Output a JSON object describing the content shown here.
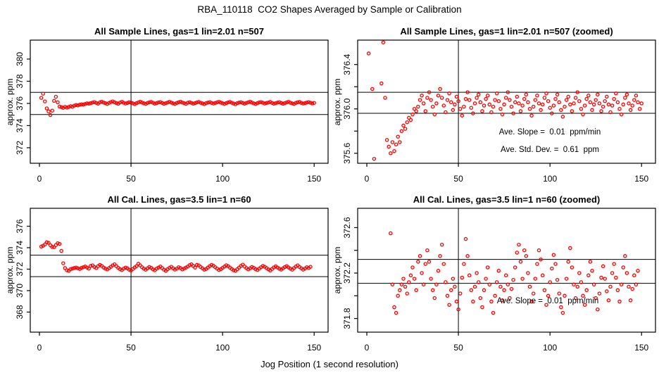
{
  "figure": {
    "main_title": "RBA_110118  CO2 Shapes Averaged by Sample or Calibration",
    "x_axis_label": "Jog Position (1 second resolution)",
    "y_axis_label": "approx. ppm",
    "point_color": "#ff0000",
    "axis_color": "#000000",
    "background_color": "#ffffff"
  },
  "series": {
    "sample": {
      "x_start": 1,
      "x_step": 1,
      "y": [
        376.5,
        376.88,
        376.18,
        375.55,
        375.28,
        374.95,
        375.35,
        376.23,
        376.6,
        376.1,
        375.72,
        375.66,
        375.6,
        375.7,
        375.62,
        375.68,
        375.75,
        375.7,
        375.8,
        375.85,
        375.82,
        375.88,
        375.92,
        375.9,
        375.95,
        376.0,
        375.98,
        376.02,
        376.08,
        376.12,
        376.05,
        375.98,
        376.1,
        376.15,
        376.08,
        376.02,
        375.95,
        376.05,
        376.12,
        376.18,
        376.1,
        376.03,
        375.97,
        376.08,
        376.14,
        376.06,
        375.99,
        376.04,
        376.11,
        376.07,
        376.0,
        375.94,
        376.02,
        376.09,
        376.15,
        376.08,
        376.01,
        375.96,
        376.05,
        376.1,
        376.13,
        376.06,
        375.98,
        376.03,
        376.09,
        376.12,
        376.04,
        375.97,
        376.02,
        376.08,
        376.14,
        376.07,
        376.0,
        375.95,
        376.04,
        376.1,
        376.15,
        376.08,
        376.02,
        375.96,
        376.06,
        376.11,
        376.05,
        375.98,
        376.03,
        376.09,
        376.13,
        376.06,
        376.0,
        375.94,
        376.02,
        376.08,
        376.12,
        376.05,
        375.99,
        376.04,
        376.1,
        376.14,
        376.07,
        376.01,
        375.96,
        376.03,
        376.09,
        376.13,
        376.06,
        375.99,
        375.93,
        376.02,
        376.08,
        376.11,
        376.04,
        375.98,
        376.05,
        376.1,
        376.15,
        376.07,
        376.0,
        375.95,
        376.03,
        376.09,
        376.12,
        376.06,
        375.99,
        376.04,
        376.08,
        376.13,
        376.05,
        375.98,
        376.02,
        376.07,
        376.11,
        376.04,
        375.97,
        376.03,
        376.09,
        376.14,
        376.06,
        376.0,
        375.95,
        376.04,
        376.1,
        376.13,
        376.05,
        375.99,
        376.03,
        376.08,
        376.12,
        376.06,
        376.0,
        376.05
      ]
    },
    "cal": {
      "x_start": 1,
      "x_step": 1,
      "y": [
        374.1,
        374.18,
        374.3,
        374.5,
        374.45,
        374.22,
        374.08,
        374.05,
        374.25,
        374.42,
        374.35,
        373.7,
        372.55,
        372.1,
        371.9,
        371.85,
        372.0,
        372.05,
        372.1,
        372.15,
        372.08,
        372.02,
        372.12,
        372.18,
        372.25,
        372.15,
        372.05,
        372.3,
        372.35,
        372.2,
        372.1,
        372.28,
        372.4,
        372.3,
        372.15,
        372.05,
        371.98,
        372.1,
        372.22,
        372.35,
        372.45,
        372.28,
        372.12,
        372.0,
        371.92,
        372.05,
        372.15,
        372.08,
        371.95,
        371.88,
        372.02,
        372.16,
        372.28,
        372.5,
        372.35,
        372.18,
        372.05,
        371.95,
        372.08,
        372.2,
        372.12,
        371.98,
        371.9,
        372.05,
        372.15,
        372.25,
        372.1,
        371.95,
        371.85,
        372.0,
        372.12,
        372.22,
        372.08,
        371.96,
        372.05,
        372.18,
        372.1,
        371.98,
        372.06,
        372.14,
        372.25,
        372.38,
        372.45,
        372.3,
        372.15,
        372.4,
        372.35,
        372.2,
        372.08,
        371.95,
        372.02,
        372.15,
        372.28,
        372.4,
        372.32,
        372.18,
        372.05,
        371.92,
        372.0,
        372.12,
        372.24,
        372.36,
        372.28,
        372.14,
        372.02,
        371.9,
        371.85,
        372.0,
        372.15,
        372.3,
        372.42,
        372.25,
        372.1,
        371.98,
        372.08,
        372.2,
        372.12,
        372.0,
        371.92,
        372.05,
        372.18,
        372.3,
        372.22,
        372.1,
        371.98,
        371.88,
        372.02,
        372.16,
        372.26,
        372.15,
        372.04,
        371.96,
        372.08,
        372.2,
        372.28,
        372.16,
        372.05,
        371.95,
        372.1,
        372.25,
        372.35,
        372.2,
        372.08,
        371.96,
        372.06,
        372.18,
        372.1,
        372.22
      ]
    }
  },
  "chart_data": [
    {
      "type": "scatter",
      "title": "All Sample Lines, gas=1 lin=2.01 n=507",
      "series_ref": "sample",
      "xlim": [
        -5.0,
        157.6
      ],
      "ylim": [
        370.6,
        381.71
      ],
      "xticks": [
        {
          "v": 0,
          "label": "0"
        },
        {
          "v": 50,
          "label": "50"
        },
        {
          "v": 100,
          "label": "100"
        },
        {
          "v": 150,
          "label": "150"
        }
      ],
      "yticks": [
        {
          "v": 372,
          "label": "372"
        },
        {
          "v": 374,
          "label": "374"
        },
        {
          "v": 376,
          "label": "376"
        },
        {
          "v": 378,
          "label": "378"
        },
        {
          "v": 380,
          "label": "380"
        }
      ],
      "hlines": [
        377.0,
        375.0
      ],
      "vlines": [
        50
      ],
      "grid": false,
      "annotations": []
    },
    {
      "type": "scatter",
      "title": "All Sample Lines, gas=1 lin=2.01 n=507 (zoomed)",
      "series_ref": "sample",
      "xlim": [
        -5.0,
        157.6
      ],
      "ylim": [
        375.51,
        376.62
      ],
      "xticks": [
        {
          "v": 0,
          "label": "0"
        },
        {
          "v": 50,
          "label": "50"
        },
        {
          "v": 100,
          "label": "100"
        },
        {
          "v": 150,
          "label": "150"
        }
      ],
      "yticks": [
        {
          "v": 375.6,
          "label": "375.6"
        },
        {
          "v": 375.8,
          "label": ""
        },
        {
          "v": 376.0,
          "label": "376.0"
        },
        {
          "v": 376.2,
          "label": ""
        },
        {
          "v": 376.4,
          "label": "376.4"
        }
      ],
      "hlines": [
        376.15,
        375.96
      ],
      "vlines": [
        50
      ],
      "grid": false,
      "annotations": [
        {
          "text": "Ave. Slope =  0.01  ppm/min"
        },
        {
          "text": "Ave. Std. Dev. =  0.61  ppm"
        }
      ]
    },
    {
      "type": "scatter",
      "title": "All Cal. Lines, gas=3.5 lin=1 n=60",
      "series_ref": "cal",
      "xlim": [
        -5.0,
        157.6
      ],
      "ylim": [
        366.13,
        377.67
      ],
      "xticks": [
        {
          "v": 0,
          "label": "0"
        },
        {
          "v": 50,
          "label": "50"
        },
        {
          "v": 100,
          "label": "100"
        },
        {
          "v": 150,
          "label": "150"
        }
      ],
      "yticks": [
        {
          "v": 368,
          "label": "368"
        },
        {
          "v": 370,
          "label": "370"
        },
        {
          "v": 372,
          "label": "372"
        },
        {
          "v": 374,
          "label": "374"
        },
        {
          "v": 376,
          "label": "376"
        }
      ],
      "hlines": [
        373.3,
        371.3
      ],
      "vlines": [
        50
      ],
      "grid": false,
      "annotations": []
    },
    {
      "type": "scatter",
      "title": "All Cal. Lines, gas=3.5 lin=1 n=60 (zoomed)",
      "series_ref": "cal",
      "xlim": [
        -5.0,
        157.6
      ],
      "ylim": [
        371.68,
        372.77
      ],
      "xticks": [
        {
          "v": 0,
          "label": "0"
        },
        {
          "v": 50,
          "label": "50"
        },
        {
          "v": 100,
          "label": "100"
        },
        {
          "v": 150,
          "label": "150"
        }
      ],
      "yticks": [
        {
          "v": 371.8,
          "label": "371.8"
        },
        {
          "v": 372.0,
          "label": ""
        },
        {
          "v": 372.2,
          "label": "372.2"
        },
        {
          "v": 372.4,
          "label": ""
        },
        {
          "v": 372.6,
          "label": "372.6"
        }
      ],
      "hlines": [
        372.32,
        372.11
      ],
      "vlines": [
        50
      ],
      "grid": false,
      "annotations": [
        {
          "text": "Ave. Slope =  0.01  ppm/min"
        }
      ]
    }
  ]
}
